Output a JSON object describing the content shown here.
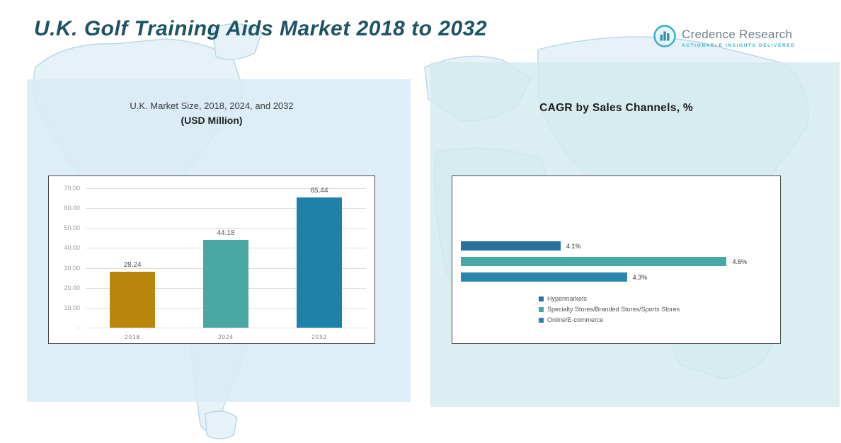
{
  "page": {
    "title": "U.K. Golf Training Aids Market 2018 to 2032"
  },
  "logo": {
    "brand": "Credence Research",
    "tagline": "Actionable Insights Delivered"
  },
  "left_panel": {
    "title_line1": "U.K. Market Size, 2018, 2024, and 2032",
    "title_line2": "(USD Million)"
  },
  "right_panel": {
    "title": "CAGR by Sales Channels, %"
  },
  "chart_data": [
    {
      "type": "bar",
      "title": "U.K. Market Size, 2018, 2024, and 2032 (USD Million)",
      "categories": [
        "2018",
        "2024",
        "2032"
      ],
      "values": [
        28.24,
        44.18,
        65.44
      ],
      "data_labels": [
        "28.24",
        "44.18",
        "65.44"
      ],
      "bar_colors": [
        "#b8860b",
        "#4ba7a4",
        "#1f80a8"
      ],
      "ylim": [
        0,
        70
      ],
      "yticks": [
        "70.00",
        "60.00",
        "50.00",
        "40.00",
        "30.00",
        "20.00",
        "10.00",
        "-"
      ],
      "grid": true,
      "legend": false
    },
    {
      "type": "bar",
      "orientation": "horizontal",
      "title": "CAGR by Sales Channels, %",
      "categories": [
        "Hypermarkets",
        "Specialty Stores/Branded Stores/Sports Stores",
        "Online/E-commerce"
      ],
      "values": [
        4.1,
        4.6,
        4.3
      ],
      "data_labels": [
        "4.1%",
        "4.6%",
        "4.3%"
      ],
      "bar_colors": [
        "#27709f",
        "#47a8a8",
        "#2a86ad"
      ],
      "legend": true,
      "legend_position": "bottom"
    }
  ]
}
